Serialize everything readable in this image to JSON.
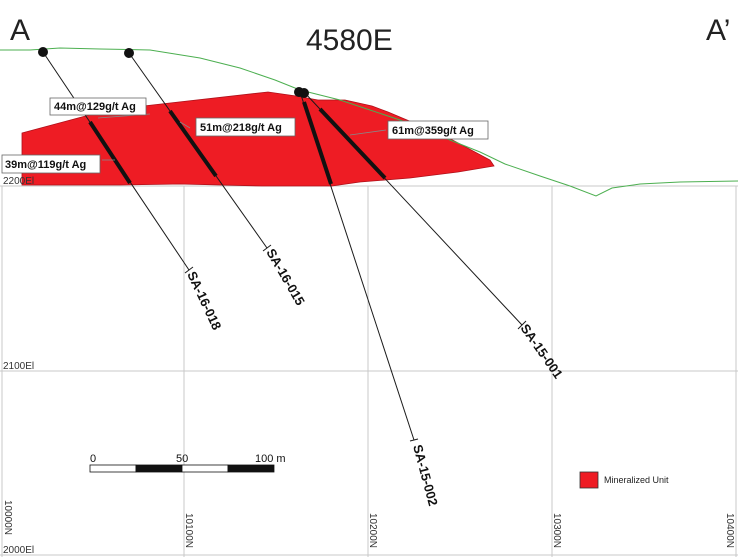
{
  "section": {
    "title": "4580E",
    "left_label": "A",
    "right_label": "A’"
  },
  "elevation_labels": [
    "2200El",
    "2100El",
    "2000El"
  ],
  "northing_labels": [
    "10000N",
    "10100N",
    "10200N",
    "10300N",
    "10400N"
  ],
  "drill_holes": [
    {
      "id": "SA-16-018"
    },
    {
      "id": "SA-16-015"
    },
    {
      "id": "SA-15-002"
    },
    {
      "id": "SA-15-001"
    }
  ],
  "intercepts": [
    {
      "label": "44m@129g/t Ag"
    },
    {
      "label": "51m@218g/t Ag"
    },
    {
      "label": "61m@359g/t Ag"
    },
    {
      "label": "39m@119g/t Ag"
    }
  ],
  "scale_bar": {
    "ticks": [
      "0",
      "50",
      "100 m"
    ]
  },
  "legend": {
    "label": "Mineralized Unit",
    "color": "#ee1c24"
  },
  "colors": {
    "topography": "#4caf50",
    "mineralized": "#ee1c24",
    "grid": "#c8c8c8"
  }
}
